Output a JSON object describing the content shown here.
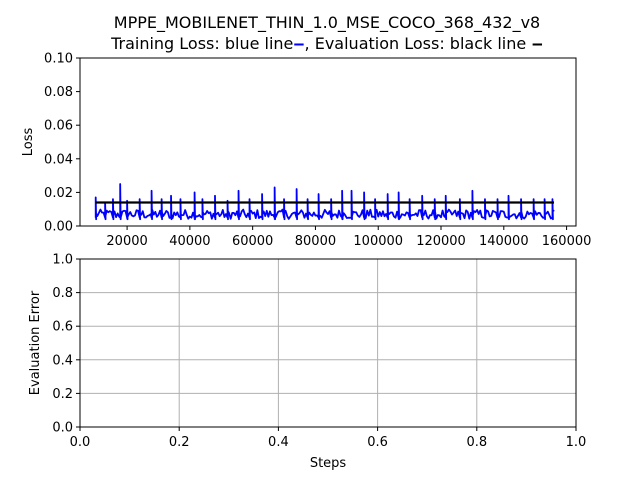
{
  "chart_data": [
    {
      "type": "line",
      "title": "MPPE_MOBILENET_THIN_1.0_MSE_COCO_368_432_v8",
      "subtitle": "Training Loss: blue line",
      "subtitle_suffix": ", Evaluation Loss: black line",
      "xlabel": "",
      "ylabel": "Loss",
      "xlim": [
        5000,
        163000
      ],
      "ylim": [
        0.0,
        0.1
      ],
      "xticks": [
        20000,
        40000,
        60000,
        80000,
        100000,
        120000,
        140000,
        160000
      ],
      "xtick_labels": [
        "20000",
        "40000",
        "60000",
        "80000",
        "100000",
        "120000",
        "140000",
        "160000"
      ],
      "yticks": [
        0.0,
        0.02,
        0.04,
        0.06,
        0.08,
        0.1
      ],
      "ytick_labels": [
        "0.00",
        "0.02",
        "0.04",
        "0.06",
        "0.08",
        "0.10"
      ],
      "grid": false,
      "series": [
        {
          "color": "#0000ff",
          "x_range": [
            10000,
            156000
          ],
          "baseline": 0.007,
          "noise": 0.0028,
          "spikes": [
            [
              10000,
              0.017
            ],
            [
              13000,
              0.014
            ],
            [
              15500,
              0.016
            ],
            [
              17800,
              0.025
            ],
            [
              20000,
              0.015
            ],
            [
              24000,
              0.016
            ],
            [
              27800,
              0.021
            ],
            [
              31000,
              0.016
            ],
            [
              34000,
              0.018
            ],
            [
              37000,
              0.016
            ],
            [
              41500,
              0.02
            ],
            [
              44000,
              0.016
            ],
            [
              48000,
              0.018
            ],
            [
              52000,
              0.015
            ],
            [
              55500,
              0.021
            ],
            [
              59000,
              0.016
            ],
            [
              63000,
              0.019
            ],
            [
              67000,
              0.023
            ],
            [
              70000,
              0.016
            ],
            [
              74000,
              0.022
            ],
            [
              77500,
              0.016
            ],
            [
              81000,
              0.019
            ],
            [
              85000,
              0.016
            ],
            [
              88500,
              0.021
            ],
            [
              91500,
              0.021
            ],
            [
              95500,
              0.02
            ],
            [
              99000,
              0.016
            ],
            [
              103000,
              0.019
            ],
            [
              106500,
              0.02
            ],
            [
              110000,
              0.016
            ],
            [
              114000,
              0.018
            ],
            [
              118000,
              0.016
            ],
            [
              121500,
              0.018
            ],
            [
              126000,
              0.016
            ],
            [
              130000,
              0.021
            ],
            [
              134000,
              0.016
            ],
            [
              138000,
              0.016
            ],
            [
              141500,
              0.018
            ],
            [
              145500,
              0.016
            ],
            [
              149500,
              0.016
            ],
            [
              153000,
              0.016
            ],
            [
              155500,
              0.016
            ]
          ]
        },
        {
          "color": "#000000",
          "x_range": [
            10000,
            156000
          ],
          "values": [
            0.014,
            0.014
          ]
        }
      ]
    },
    {
      "type": "line",
      "xlabel": "Steps",
      "ylabel": "Evaluation Error",
      "xlim": [
        0.0,
        1.0
      ],
      "ylim": [
        0.0,
        1.0
      ],
      "xticks": [
        0.0,
        0.2,
        0.4,
        0.6,
        0.8,
        1.0
      ],
      "xtick_labels": [
        "0.0",
        "0.2",
        "0.4",
        "0.6",
        "0.8",
        "1.0"
      ],
      "yticks": [
        0.0,
        0.2,
        0.4,
        0.6,
        0.8,
        1.0
      ],
      "ytick_labels": [
        "0.0",
        "0.2",
        "0.4",
        "0.6",
        "0.8",
        "1.0"
      ],
      "grid": true,
      "series": []
    }
  ]
}
